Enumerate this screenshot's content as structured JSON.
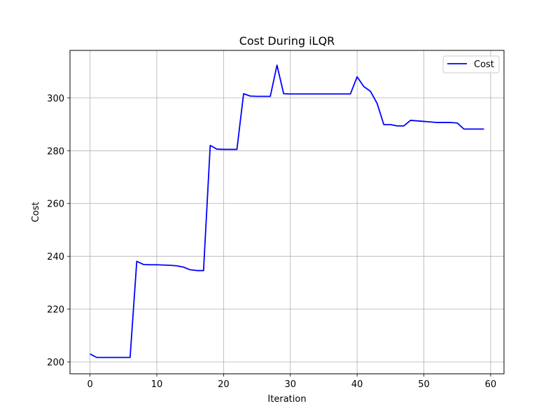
{
  "chart_data": {
    "type": "line",
    "title": "Cost During iLQR",
    "xlabel": "Iteration",
    "ylabel": "Cost",
    "xlim": [
      -3,
      62
    ],
    "ylim": [
      195.5,
      318
    ],
    "xticks": [
      0,
      10,
      20,
      30,
      40,
      50,
      60
    ],
    "yticks": [
      200,
      220,
      240,
      260,
      280,
      300
    ],
    "grid": true,
    "legend_position": "top-right",
    "series": [
      {
        "name": "Cost",
        "color": "#0000ff",
        "x": [
          0,
          1,
          2,
          3,
          4,
          5,
          6,
          7,
          8,
          9,
          10,
          11,
          12,
          13,
          14,
          15,
          16,
          17,
          18,
          19,
          20,
          21,
          22,
          23,
          24,
          25,
          26,
          27,
          28,
          29,
          30,
          31,
          32,
          33,
          34,
          35,
          36,
          37,
          38,
          39,
          40,
          41,
          42,
          43,
          44,
          45,
          46,
          47,
          48,
          49,
          50,
          51,
          52,
          53,
          54,
          55,
          56,
          57,
          58,
          59
        ],
        "y": [
          203.0,
          201.7,
          201.7,
          201.7,
          201.7,
          201.7,
          201.7,
          238.1,
          236.9,
          236.8,
          236.8,
          236.7,
          236.6,
          236.4,
          235.9,
          234.9,
          234.6,
          234.6,
          282.0,
          280.6,
          280.5,
          280.5,
          280.5,
          301.6,
          300.7,
          300.6,
          300.6,
          300.6,
          312.4,
          301.6,
          301.5,
          301.5,
          301.5,
          301.5,
          301.5,
          301.5,
          301.5,
          301.5,
          301.5,
          301.5,
          308.0,
          304.3,
          302.5,
          297.9,
          289.9,
          289.9,
          289.4,
          289.4,
          291.5,
          291.3,
          291.1,
          290.9,
          290.7,
          290.7,
          290.7,
          290.5,
          288.2,
          288.2,
          288.2,
          288.2
        ]
      }
    ]
  },
  "colors": {
    "grid": "#b0b0b0",
    "axis": "#000000",
    "legend_border": "#cccccc"
  }
}
